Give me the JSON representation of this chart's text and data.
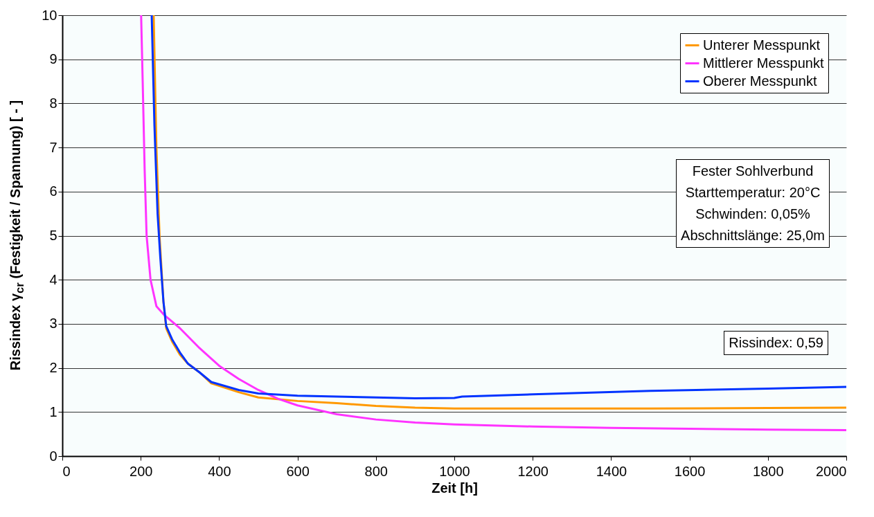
{
  "chart_data": {
    "type": "line",
    "xlabel": "Zeit [h]",
    "ylabel": "Rissindex γ$_{cr}$ (Festigkeit / Spannung) [ - ]",
    "xlim": [
      0,
      2000
    ],
    "xticks": [
      0,
      200,
      400,
      600,
      800,
      1000,
      1200,
      1400,
      1600,
      1800,
      2000
    ],
    "ylim": [
      0,
      10
    ],
    "yticks": [
      0,
      1,
      2,
      3,
      4,
      5,
      6,
      7,
      8,
      9,
      10
    ],
    "grid": "y",
    "legend": "top right",
    "line_style": "solid",
    "annotations": [
      "Fester Sohlverbund\nStarttemperatur: 20°C\nSchwinden: 0,05%\nAbschnittslänge: 25,0m",
      "Rissindex: 0,59"
    ],
    "series": [
      {
        "name": "Unterer Messpunkt",
        "color": "#ff9900",
        "x": [
          233,
          240,
          248,
          258,
          265,
          280,
          300,
          320,
          350,
          380,
          450,
          500,
          600,
          700,
          800,
          900,
          1000,
          1200,
          1500,
          1800,
          2000
        ],
        "values": [
          10,
          7,
          5,
          3.5,
          2.9,
          2.6,
          2.3,
          2.1,
          1.9,
          1.65,
          1.45,
          1.33,
          1.25,
          1.2,
          1.14,
          1.1,
          1.08,
          1.08,
          1.08,
          1.09,
          1.1
        ]
      },
      {
        "name": "Mittlerer Messpunkt",
        "color": "#ff33ff",
        "x": [
          201,
          205,
          210,
          215,
          225,
          240,
          260,
          280,
          300,
          350,
          400,
          450,
          500,
          550,
          600,
          700,
          800,
          900,
          1000,
          1200,
          1400,
          1600,
          1800,
          2000
        ],
        "values": [
          10,
          8.5,
          6.5,
          5,
          4,
          3.4,
          3.2,
          3.05,
          2.9,
          2.45,
          2.05,
          1.75,
          1.5,
          1.3,
          1.15,
          0.95,
          0.83,
          0.76,
          0.72,
          0.67,
          0.64,
          0.62,
          0.6,
          0.59
        ]
      },
      {
        "name": "Oberer Messpunkt",
        "color": "#0033ff",
        "x": [
          228,
          235,
          243,
          250,
          258,
          265,
          280,
          300,
          320,
          350,
          380,
          450,
          500,
          600,
          700,
          800,
          900,
          1000,
          1020,
          1200,
          1500,
          1800,
          2000
        ],
        "values": [
          10,
          7.5,
          5.5,
          4.5,
          3.5,
          2.95,
          2.65,
          2.35,
          2.1,
          1.9,
          1.68,
          1.5,
          1.42,
          1.37,
          1.35,
          1.33,
          1.31,
          1.32,
          1.35,
          1.4,
          1.48,
          1.53,
          1.57
        ]
      }
    ]
  }
}
